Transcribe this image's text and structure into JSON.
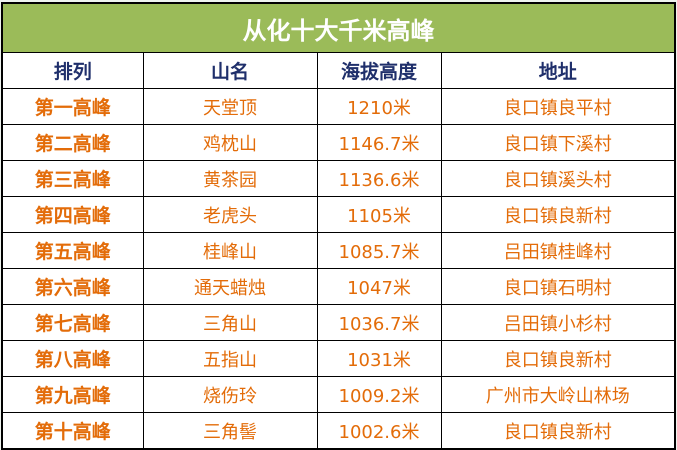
{
  "title": "从化十大千米高峰",
  "headers": [
    "排列",
    "山名",
    "海拔高度",
    "地址"
  ],
  "rows": [
    [
      "第一高峰",
      "天堂顶",
      "1210米",
      "良口镇良平村"
    ],
    [
      "第二高峰",
      "鸡枕山",
      "1146.7米",
      "良口镇下溪村"
    ],
    [
      "第三高峰",
      "黄茶园",
      "1136.6米",
      "良口镇溪头村"
    ],
    [
      "第四高峰",
      "老虎头",
      "1105米",
      "良口镇良新村"
    ],
    [
      "第五高峰",
      "桂峰山",
      "1085.7米",
      "吕田镇桂峰村"
    ],
    [
      "第六高峰",
      "通天蜡烛",
      "1047米",
      "良口镇石明村"
    ],
    [
      "第七高峰",
      "三角山",
      "1036.7米",
      "吕田镇小杉村"
    ],
    [
      "第八高峰",
      "五指山",
      "1031米",
      "良口镇良新村"
    ],
    [
      "第九高峰",
      "烧伤玲",
      "1009.2米",
      "广州市大岭山林场"
    ],
    [
      "第十高峰",
      "三角髻",
      "1002.6米",
      "良口镇良新村"
    ]
  ],
  "colors": {
    "title_bg": "#9bbb59",
    "header_text": "#1f2f6b",
    "body_text": "#e36c09"
  }
}
